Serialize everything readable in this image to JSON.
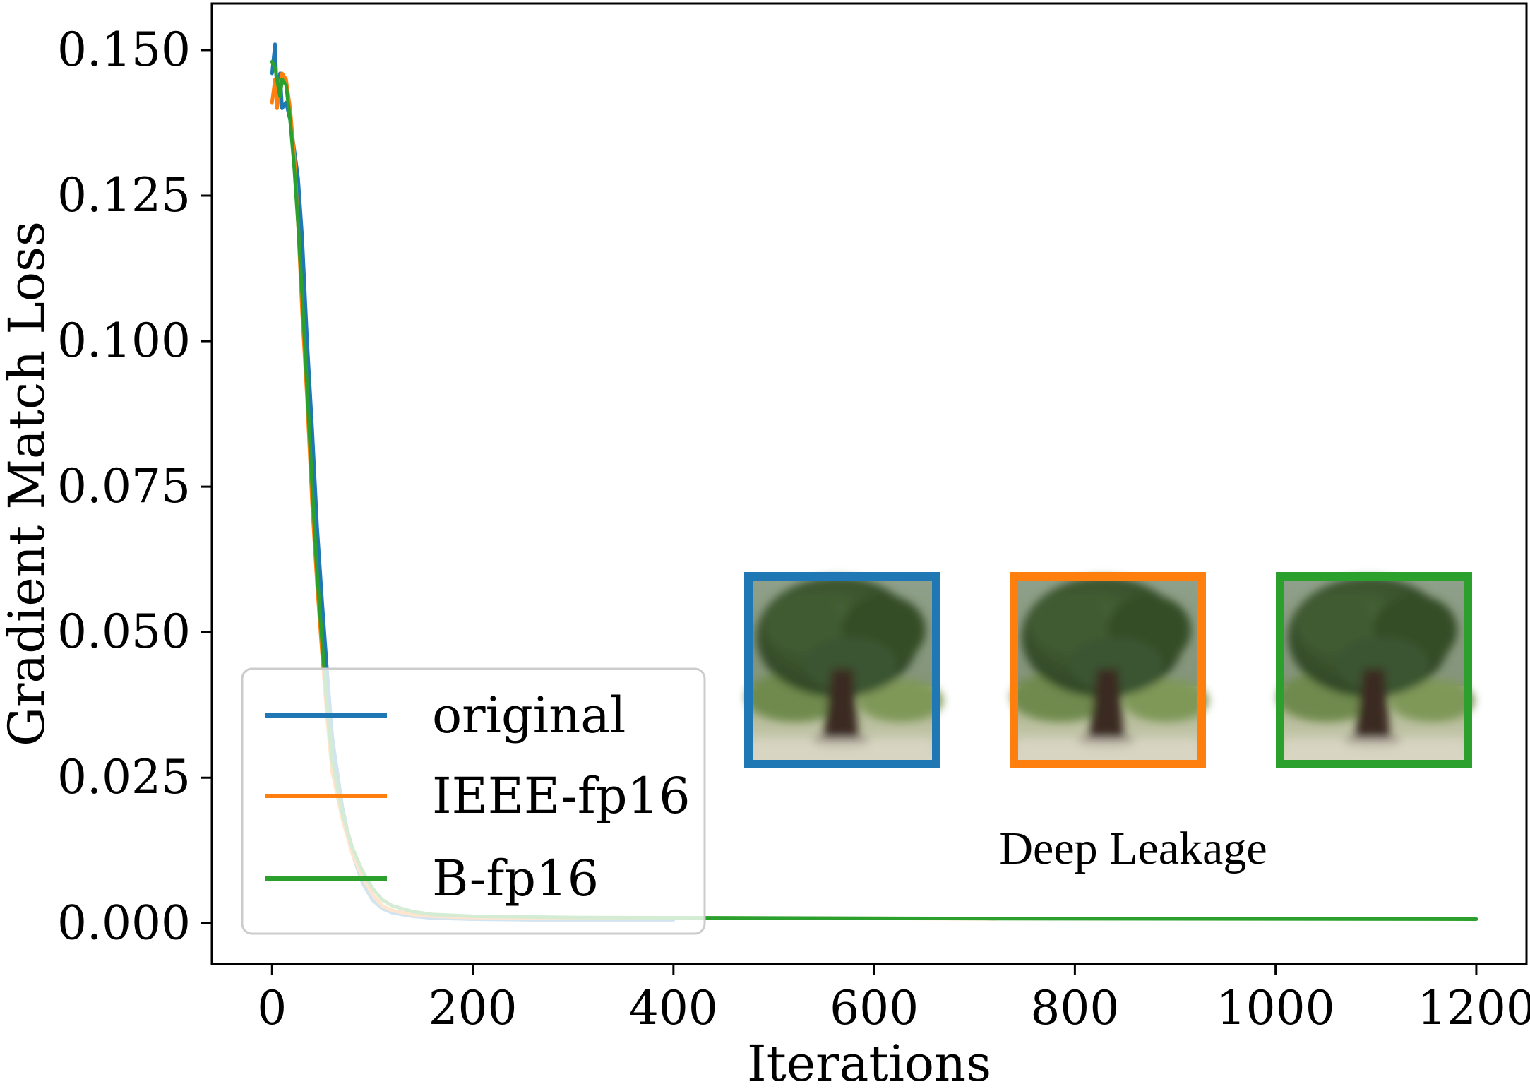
{
  "chart_data": {
    "type": "line",
    "xlabel": "Iterations",
    "ylabel": "Gradient Match Loss",
    "xlim": [
      -60,
      1250
    ],
    "ylim": [
      -0.007,
      0.158
    ],
    "x_ticks": [
      0,
      200,
      400,
      600,
      800,
      1000,
      1200
    ],
    "x_tick_labels": [
      "0",
      "200",
      "400",
      "600",
      "800",
      "1000",
      "1200"
    ],
    "y_ticks": [
      0.0,
      0.025,
      0.05,
      0.075,
      0.1,
      0.125,
      0.15
    ],
    "y_tick_labels": [
      "0.000",
      "0.025",
      "0.050",
      "0.075",
      "0.100",
      "0.125",
      "0.150"
    ],
    "grid": false,
    "legend_position": "bottom-left",
    "series": [
      {
        "name": "original",
        "color": "#1f77b4",
        "x": [
          0,
          3,
          5,
          8,
          10,
          14,
          18,
          22,
          26,
          30,
          35,
          40,
          45,
          50,
          55,
          60,
          70,
          80,
          90,
          100,
          110,
          120,
          140,
          160,
          200,
          260,
          400
        ],
        "y": [
          0.146,
          0.151,
          0.142,
          0.146,
          0.14,
          0.141,
          0.138,
          0.133,
          0.128,
          0.118,
          0.1,
          0.085,
          0.068,
          0.055,
          0.043,
          0.032,
          0.02,
          0.012,
          0.007,
          0.004,
          0.0025,
          0.0018,
          0.0012,
          0.0009,
          0.0007,
          0.0006,
          0.0006
        ]
      },
      {
        "name": "IEEE-fp16",
        "color": "#ff7f0e",
        "x": [
          0,
          3,
          5,
          8,
          10,
          14,
          18,
          22,
          26,
          30,
          35,
          40,
          45,
          50,
          55,
          60,
          70,
          80,
          90,
          100,
          110,
          120,
          140,
          160,
          200,
          300,
          720
        ],
        "y": [
          0.141,
          0.145,
          0.14,
          0.144,
          0.146,
          0.145,
          0.14,
          0.132,
          0.12,
          0.105,
          0.09,
          0.072,
          0.058,
          0.046,
          0.035,
          0.026,
          0.018,
          0.012,
          0.008,
          0.005,
          0.003,
          0.0022,
          0.0015,
          0.0012,
          0.001,
          0.0009,
          0.0008
        ]
      },
      {
        "name": "B-fp16",
        "color": "#2ca02c",
        "x": [
          0,
          3,
          5,
          8,
          10,
          14,
          18,
          22,
          26,
          30,
          35,
          40,
          45,
          50,
          55,
          60,
          70,
          80,
          90,
          100,
          110,
          120,
          140,
          160,
          200,
          300,
          500,
          720,
          1200
        ],
        "y": [
          0.148,
          0.147,
          0.145,
          0.142,
          0.145,
          0.144,
          0.138,
          0.13,
          0.12,
          0.108,
          0.092,
          0.075,
          0.06,
          0.048,
          0.037,
          0.028,
          0.019,
          0.013,
          0.009,
          0.006,
          0.004,
          0.003,
          0.002,
          0.0015,
          0.0012,
          0.001,
          0.0009,
          0.0008,
          0.0007
        ]
      }
    ]
  },
  "annotation": {
    "text": "Deep Leakage",
    "images": [
      {
        "name": "original",
        "border_color": "#1f77b4",
        "icon": "tree-photo"
      },
      {
        "name": "IEEE-fp16",
        "border_color": "#ff7f0e",
        "icon": "tree-photo"
      },
      {
        "name": "B-fp16",
        "border_color": "#2ca02c",
        "icon": "tree-photo"
      }
    ]
  }
}
